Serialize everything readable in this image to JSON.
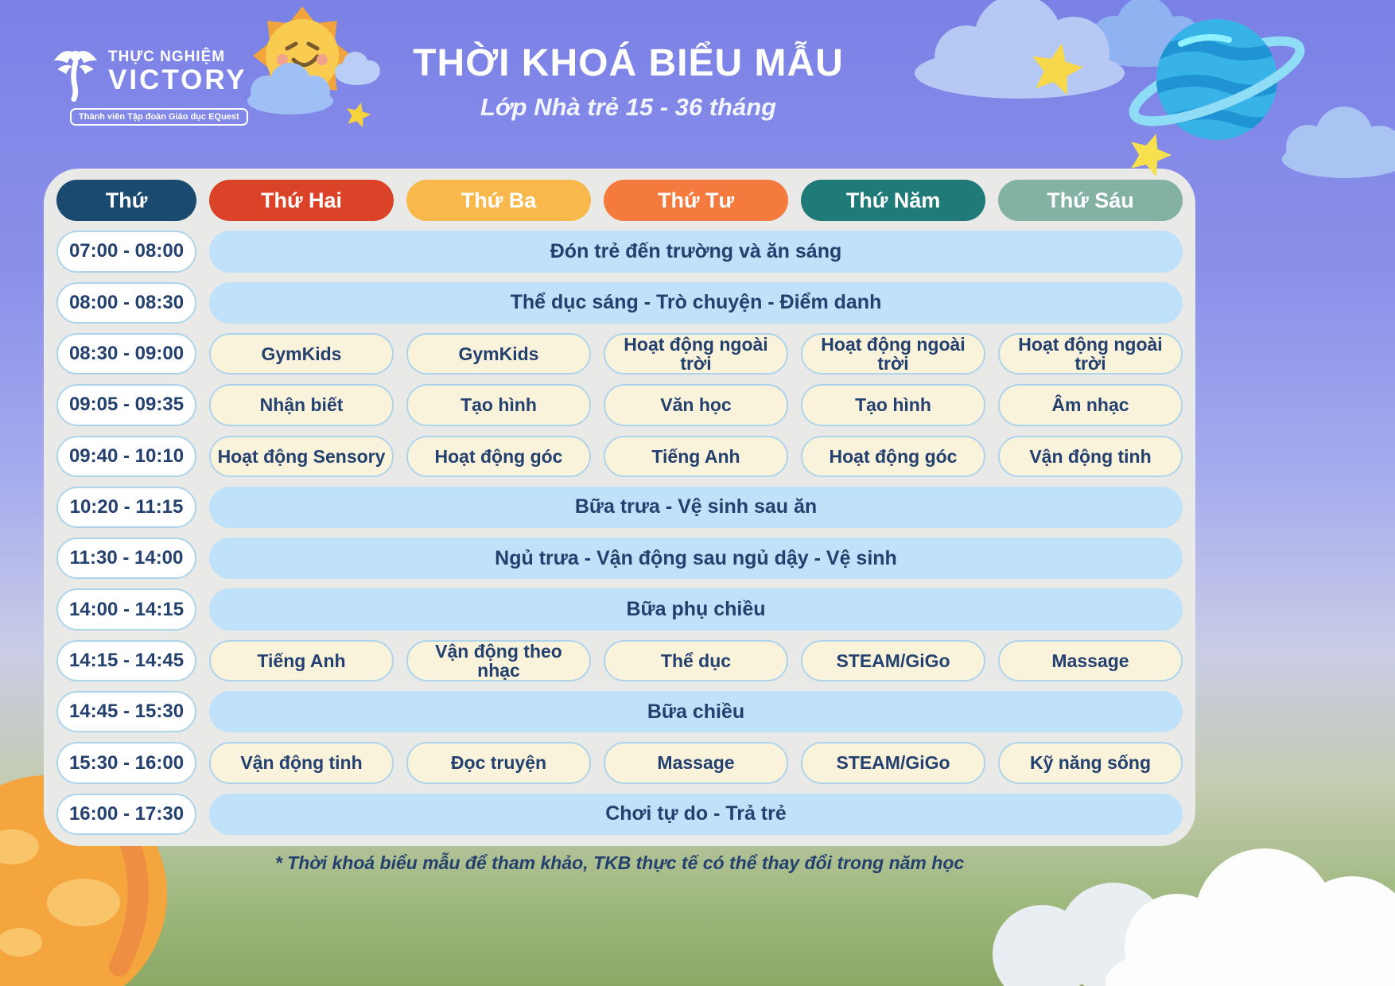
{
  "logo": {
    "line1": "THỰC NGHIỆM",
    "line2": "VICTORY",
    "tagline": "Thành viên Tập đoàn Giáo dục EQuest"
  },
  "header": {
    "title": "THỜI KHOÁ BIỂU MẪU",
    "subtitle": "Lớp Nhà trẻ 15 - 36 tháng"
  },
  "table": {
    "day_headers": [
      {
        "label": "Thứ",
        "color": "#1b4a70"
      },
      {
        "label": "Thứ Hai",
        "color": "#da4327"
      },
      {
        "label": "Thứ Ba",
        "color": "#f9b84b"
      },
      {
        "label": "Thứ Tư",
        "color": "#f57a3e"
      },
      {
        "label": "Thứ Năm",
        "color": "#207a78"
      },
      {
        "label": "Thứ Sáu",
        "color": "#83b2a4"
      }
    ],
    "rows": [
      {
        "time": "07:00 - 08:00",
        "type": "span",
        "activity": "Đón trẻ đến trường và ăn sáng"
      },
      {
        "time": "08:00 - 08:30",
        "type": "span",
        "activity": "Thể dục sáng - Trò chuyện - Điểm danh"
      },
      {
        "time": "08:30 - 09:00",
        "type": "cells",
        "activities": [
          "GymKids",
          "GymKids",
          "Hoạt động ngoài trời",
          "Hoạt động ngoài trời",
          "Hoạt động ngoài trời"
        ]
      },
      {
        "time": "09:05 - 09:35",
        "type": "cells",
        "activities": [
          "Nhận biết",
          "Tạo hình",
          "Văn học",
          "Tạo hình",
          "Âm nhạc"
        ]
      },
      {
        "time": "09:40 - 10:10",
        "type": "cells",
        "activities": [
          "Hoạt động Sensory",
          "Hoạt động góc",
          "Tiếng Anh",
          "Hoạt động góc",
          "Vận động tinh"
        ]
      },
      {
        "time": "10:20 - 11:15",
        "type": "span",
        "activity": "Bữa trưa - Vệ sinh sau ăn"
      },
      {
        "time": "11:30 - 14:00",
        "type": "span",
        "activity": "Ngủ trưa - Vận động sau ngủ dậy - Vệ sinh"
      },
      {
        "time": "14:00 - 14:15",
        "type": "span",
        "activity": "Bữa phụ chiều"
      },
      {
        "time": "14:15 - 14:45",
        "type": "cells",
        "activities": [
          "Tiếng Anh",
          "Vận động theo nhạc",
          "Thể dục",
          "STEAM/GiGo",
          "Massage"
        ]
      },
      {
        "time": "14:45 - 15:30",
        "type": "span",
        "activity": "Bữa chiều"
      },
      {
        "time": "15:30 - 16:00",
        "type": "cells",
        "activities": [
          "Vận động tinh",
          "Đọc truyện",
          "Massage",
          "STEAM/GiGo",
          "Kỹ năng sống"
        ]
      },
      {
        "time": "16:00 - 17:30",
        "type": "span",
        "activity": "Chơi tự do - Trả trẻ"
      }
    ]
  },
  "footer": {
    "note": "* Thời khoá biểu mẫu để tham khảo, TKB thực tế có thể thay đổi trong năm học"
  },
  "colors": {
    "table_bg": "#e9e9e8",
    "span_blue": "#bfe1f9",
    "cell_cream": "#faf3dc",
    "cell_border": "#aed4ec",
    "text_navy": "#24406e",
    "accent_sun": "#f9cc51",
    "accent_star": "#f6d84a",
    "accent_planet": "#38b3e7"
  }
}
